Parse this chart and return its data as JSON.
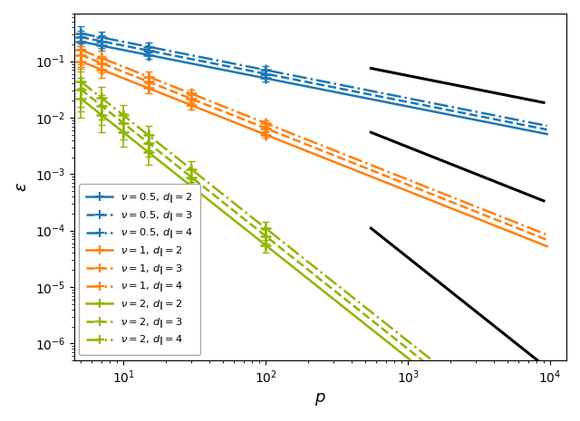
{
  "colors": {
    "0.5": "#1f77b4",
    "1.0": "#ff7f0e",
    "2.0": "#8db600"
  },
  "linestyles": {
    "2": "solid",
    "3": "dashed",
    "4": "dashdot"
  },
  "xlabel": "$p$",
  "ylabel": "$\\varepsilon$",
  "xlim": [
    4.5,
    13000
  ],
  "ylim": [
    5e-07,
    0.7
  ],
  "series": [
    {
      "nu": 0.5,
      "d": 2,
      "C": 0.5,
      "slope": -0.5,
      "eb_p": [
        5,
        7,
        15,
        100
      ],
      "eb_rel_err": [
        0.25,
        0.2,
        0.15,
        0.12
      ]
    },
    {
      "nu": 0.5,
      "d": 3,
      "C": 0.6,
      "slope": -0.5,
      "eb_p": [
        5,
        7,
        15,
        100
      ],
      "eb_rel_err": [
        0.3,
        0.25,
        0.18,
        0.14
      ]
    },
    {
      "nu": 0.5,
      "d": 4,
      "C": 0.7,
      "slope": -0.5,
      "eb_p": [
        5,
        7,
        15,
        100
      ],
      "eb_rel_err": [
        0.35,
        0.28,
        0.2,
        0.16
      ]
    },
    {
      "nu": 1.0,
      "d": 2,
      "C": 0.5,
      "slope": -1.0,
      "eb_p": [
        5,
        7,
        15,
        30,
        100
      ],
      "eb_rel_err": [
        0.35,
        0.3,
        0.2,
        0.15,
        0.1
      ]
    },
    {
      "nu": 1.0,
      "d": 3,
      "C": 0.65,
      "slope": -1.0,
      "eb_p": [
        5,
        7,
        15,
        30,
        100
      ],
      "eb_rel_err": [
        0.4,
        0.32,
        0.22,
        0.16,
        0.11
      ]
    },
    {
      "nu": 1.0,
      "d": 4,
      "C": 0.8,
      "slope": -1.0,
      "eb_p": [
        5,
        7,
        15,
        30,
        100
      ],
      "eb_rel_err": [
        0.45,
        0.35,
        0.25,
        0.18,
        0.12
      ]
    },
    {
      "nu": 2.0,
      "d": 2,
      "C": 0.55,
      "slope": -2.0,
      "eb_p": [
        5,
        7,
        10,
        15,
        30,
        100
      ],
      "eb_rel_err": [
        0.55,
        0.5,
        0.45,
        0.4,
        0.35,
        0.25
      ]
    },
    {
      "nu": 2.0,
      "d": 3,
      "C": 0.8,
      "slope": -2.0,
      "eb_p": [
        5,
        7,
        10,
        15,
        30,
        100
      ],
      "eb_rel_err": [
        0.6,
        0.55,
        0.48,
        0.42,
        0.38,
        0.27
      ]
    },
    {
      "nu": 2.0,
      "d": 4,
      "C": 1.1,
      "slope": -2.0,
      "eb_p": [
        5,
        7,
        10,
        15,
        30,
        100
      ],
      "eb_rel_err": [
        0.65,
        0.58,
        0.5,
        0.45,
        0.4,
        0.28
      ]
    }
  ],
  "ref_lines": [
    {
      "x0": 550,
      "x1": 9000,
      "slope": -0.5,
      "y_at_x0": 0.075
    },
    {
      "x0": 550,
      "x1": 9000,
      "slope": -1.0,
      "y_at_x0": 0.0055
    },
    {
      "x0": 550,
      "x1": 9000,
      "slope": -2.0,
      "y_at_x0": 0.00011
    }
  ],
  "ref_color": "#000000",
  "ref_linewidth": 2.2,
  "linewidth": 1.8,
  "markersize": 9,
  "capsize": 3,
  "elinewidth": 1.2
}
